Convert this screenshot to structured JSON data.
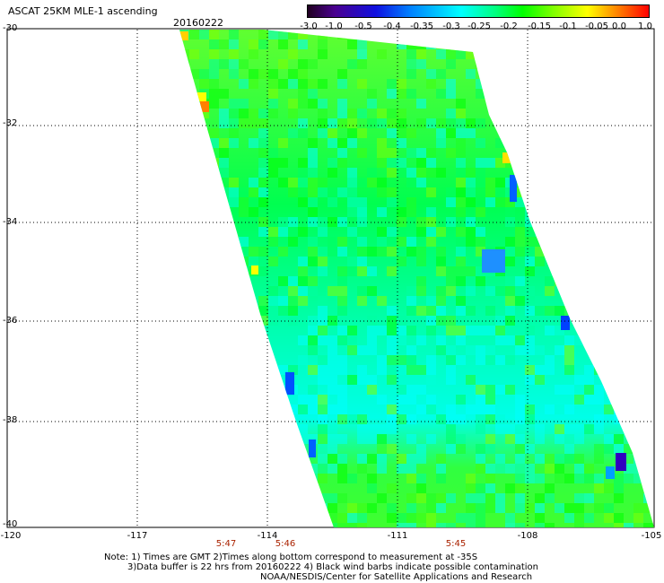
{
  "header": {
    "title": "ASCAT 25KM MLE-1 ascending",
    "date": "20160222"
  },
  "colorbar": {
    "ticks": [
      "-3.0",
      "-1.0",
      "-0.5",
      "-0.4",
      "-0.35",
      "-0.3",
      "-0.25",
      "-0.2",
      "-0.15",
      "-0.1",
      "-0.05",
      "0.0",
      "1.0"
    ]
  },
  "axes": {
    "lat_labels": [
      "-30",
      "-32",
      "-34",
      "-36",
      "-38",
      "-40"
    ],
    "lon_labels": [
      "-120",
      "-117",
      "-114",
      "-111",
      "-108",
      "-105"
    ]
  },
  "times": [
    "5:47",
    "5:46",
    "5:45"
  ],
  "notes": {
    "line1": "Note: 1) Times are GMT 2)Times along bottom correspond to measurement at -35S",
    "line2": "3)Data buffer is 22 hrs from 20160222 4) Black wind barbs indicate possible contamination",
    "line3": "NOAA/NESDIS/Center for Satellite Applications and Research"
  },
  "colors": {
    "field": "#00ff40",
    "band_low": "#00ffee",
    "grid": "#000000"
  }
}
